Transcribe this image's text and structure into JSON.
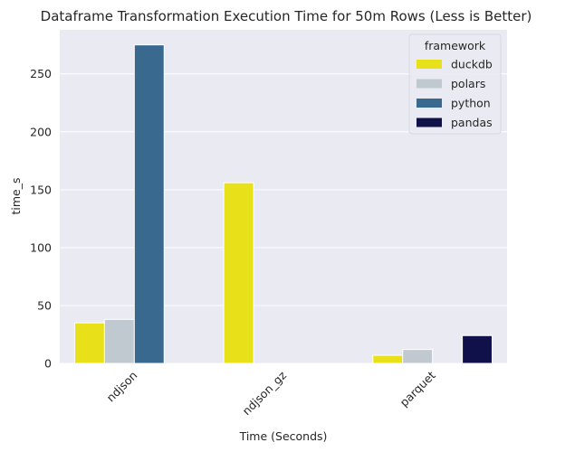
{
  "chart_data": {
    "type": "bar",
    "title": "Dataframe Transformation Execution Time for 50m Rows (Less is Better)",
    "xlabel": "Time (Seconds)",
    "ylabel": "time_s",
    "categories": [
      "ndjson",
      "ndjson_gz",
      "parquet"
    ],
    "series": [
      {
        "name": "duckdb",
        "color": "#e8e11a",
        "values": [
          35,
          156,
          7
        ]
      },
      {
        "name": "polars",
        "color": "#c0c8d0",
        "values": [
          38,
          0,
          12
        ]
      },
      {
        "name": "python",
        "color": "#3a6990",
        "values": [
          275,
          0,
          0
        ]
      },
      {
        "name": "pandas",
        "color": "#10104a",
        "values": [
          0,
          0,
          24
        ]
      }
    ],
    "ylim": [
      0,
      288
    ],
    "yticks": [
      0,
      50,
      100,
      150,
      200,
      250
    ],
    "legend": {
      "title": "framework",
      "position": "top-right"
    },
    "grid": true,
    "background": "#eaeaf2"
  }
}
